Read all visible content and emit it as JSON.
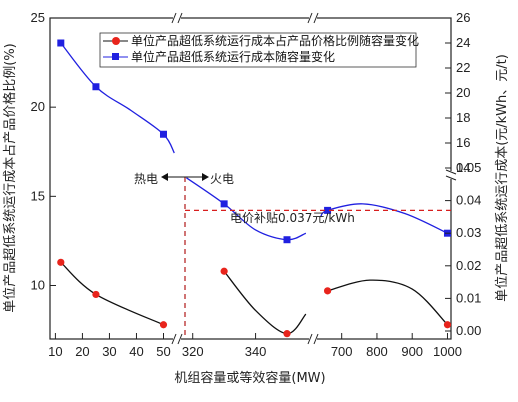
{
  "chart_data": {
    "type": "line",
    "xlabel": "机组容量或等效容量(MW)",
    "ylabel_left": "单位产品超低系统运行成本占产品价格比例(%)",
    "ylabel_right": "单位产品超低系统运行成本(元/kWh、元/t)",
    "ylim_left": [
      7,
      25
    ],
    "left_ticks": [
      "10",
      "15",
      "20",
      "25"
    ],
    "ylim_right_low": [
      0,
      0.05
    ],
    "ylim_right_high": [
      14,
      26
    ],
    "right_ticks_low": [
      "0.00",
      "0.01",
      "0.02",
      "0.03",
      "0.04",
      "0.05"
    ],
    "right_ticks_high": [
      "14",
      "16",
      "18",
      "20",
      "22",
      "24",
      "26"
    ],
    "x_ticks": [
      {
        "label": "10",
        "value": 10
      },
      {
        "label": "20",
        "value": 20
      },
      {
        "label": "30",
        "value": 30
      },
      {
        "label": "40",
        "value": 40
      },
      {
        "label": "50",
        "value": 50
      },
      {
        "label": "320",
        "value": 320
      },
      {
        "label": "340",
        "value": 340
      },
      {
        "label": "700",
        "value": 700
      },
      {
        "label": "800",
        "value": 800
      },
      {
        "label": "900",
        "value": 900
      },
      {
        "label": "1000",
        "value": 1000
      }
    ],
    "series": [
      {
        "name": "单位产品超低系统运行成本占产品价格比例随容量变化",
        "axis": "left",
        "color": "#e8241c",
        "x": [
          12,
          25,
          50,
          330,
          350,
          660,
          1000
        ],
        "y": [
          11.3,
          9.5,
          7.8,
          10.8,
          7.3,
          9.7,
          7.8
        ]
      },
      {
        "name": "单位产品超低系统运行成本随容量变化",
        "axis": "right",
        "color": "#2020e0",
        "x": [
          12,
          25,
          50,
          330,
          350,
          660,
          1000
        ],
        "y": [
          24,
          20.5,
          16.7,
          0.039,
          0.028,
          0.037,
          0.03
        ]
      }
    ],
    "annotations": [
      {
        "text": "热电"
      },
      {
        "text": "火电"
      },
      {
        "text": "电价补贴0.037元/kWh",
        "value": 0.037
      }
    ],
    "grid": false,
    "legend": "top"
  }
}
